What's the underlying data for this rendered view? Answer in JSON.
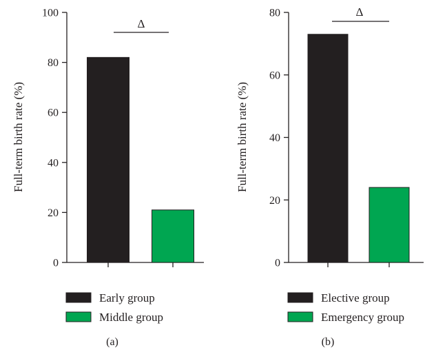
{
  "chart_data": [
    {
      "type": "bar",
      "panel_label": "(a)",
      "ylabel": "Full-term birth rate (%)",
      "xlabel": "",
      "ylim": [
        0,
        100
      ],
      "yticks": [
        "0",
        "20",
        "40",
        "60",
        "80",
        "100"
      ],
      "categories": [
        "Early group",
        "Middle group"
      ],
      "values": [
        82,
        21
      ],
      "colors": [
        "#231f20",
        "#00a651"
      ],
      "significance_marker": "Δ",
      "legend": [
        {
          "label": "Early group",
          "color": "#231f20"
        },
        {
          "label": "Middle group",
          "color": "#00a651"
        }
      ],
      "grid": false,
      "legend_position": "bottom"
    },
    {
      "type": "bar",
      "panel_label": "(b)",
      "ylabel": "Full-term birth rate (%)",
      "xlabel": "",
      "ylim": [
        0,
        80
      ],
      "yticks": [
        "0",
        "20",
        "40",
        "60",
        "80"
      ],
      "categories": [
        "Elective group",
        "Emergency group"
      ],
      "values": [
        73,
        24
      ],
      "colors": [
        "#231f20",
        "#00a651"
      ],
      "significance_marker": "Δ",
      "legend": [
        {
          "label": "Elective group",
          "color": "#231f20"
        },
        {
          "label": "Emergency group",
          "color": "#00a651"
        }
      ],
      "grid": false,
      "legend_position": "bottom"
    }
  ]
}
